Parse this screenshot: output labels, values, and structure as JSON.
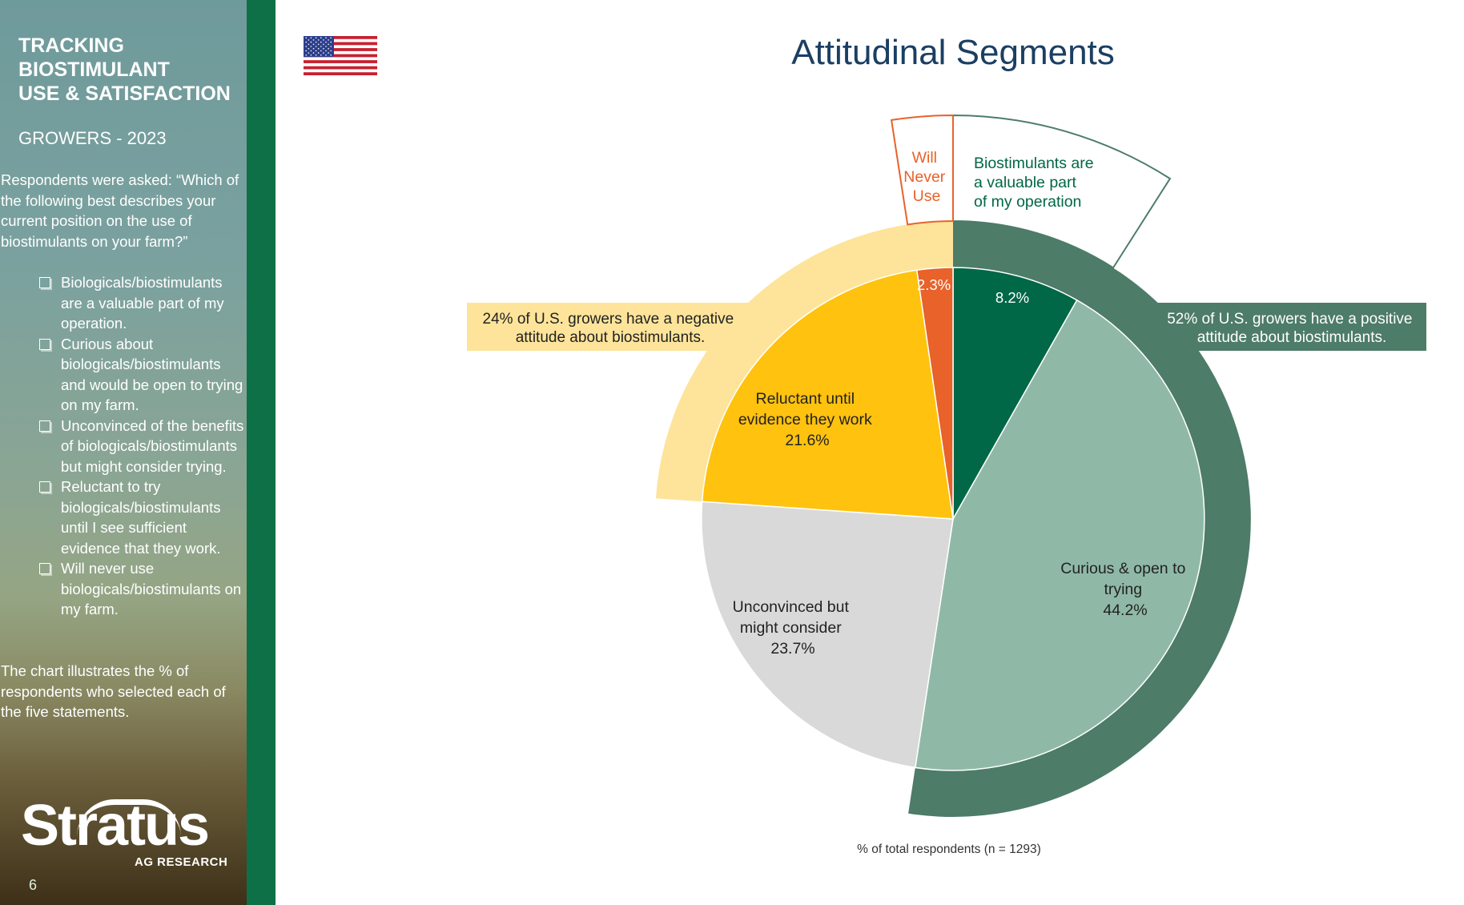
{
  "sidebar": {
    "title_lines": [
      "TRACKING",
      "BIOSTIMULANT",
      "USE & SATISFACTION"
    ],
    "subtitle": "GROWERS - 2023",
    "question": "Respondents were asked: “Which of the following best describes your current position on the use of biostimulants on your farm?”",
    "options": [
      "Biologicals/biostimulants are a valuable part of my operation.",
      "Curious about biologicals/biostimulants and would be open to trying on my farm.",
      "Unconvinced of the benefits of biologicals/biostimulants but might consider trying.",
      "Reluctant to try biologicals/biostimulants until I see sufficient evidence that they work.",
      "Will never use biologicals/biostimulants on my farm."
    ],
    "note": "The chart illustrates the % of respondents who selected each of the five statements.",
    "logo_text": "Stratus",
    "logo_sub": "AG RESEARCH",
    "page_number": "6"
  },
  "flag_icon": "us-flag-icon",
  "heading": "Attitudinal Segments",
  "callouts": {
    "negative": [
      "24% of U.S. growers have a negative",
      "attitude about biostimulants."
    ],
    "positive": [
      "52% of U.S. growers have a positive",
      "attitude about biostimulants."
    ]
  },
  "footnote": "% of total respondents (n = 1293)",
  "colors": {
    "valuable": "#006747",
    "curious": "#8fb9a6",
    "unconvinced": "#d9d9d9",
    "reluctant": "#ffc20e",
    "never": "#e8622a",
    "positive_ring": "#4d7c68",
    "negative_ring": "#fde49a",
    "heading": "#1b3f63"
  },
  "chart_data": {
    "type": "pie",
    "title": "Attitudinal Segments",
    "unit": "%",
    "slices": [
      {
        "label": "Biostimulants are a valuable part of my operation",
        "value": 8.2,
        "display": "8.2%"
      },
      {
        "label": "Curious & open to trying",
        "value": 44.2,
        "display": "44.2%"
      },
      {
        "label": "Unconvinced but might consider",
        "value": 23.7,
        "display": "23.7%"
      },
      {
        "label": "Reluctant until evidence they work",
        "value": 21.6,
        "display": "21.6%"
      },
      {
        "label": "Will Never Use",
        "value": 2.3,
        "display": "2.3%"
      }
    ],
    "slice_label_lines": [
      [
        "Biostimulants are",
        "a valuable part",
        "of my operation"
      ],
      [
        "Curious & open to",
        "trying"
      ],
      [
        "Unconvinced but",
        "might consider"
      ],
      [
        "Reluctant until",
        "evidence they work"
      ],
      [
        "Will",
        "Never",
        "Use"
      ]
    ],
    "groups": [
      {
        "label": "positive",
        "value": 52
      },
      {
        "label": "negative",
        "value": 24
      }
    ],
    "xlabel": "% of total respondents (n = 1293)"
  }
}
